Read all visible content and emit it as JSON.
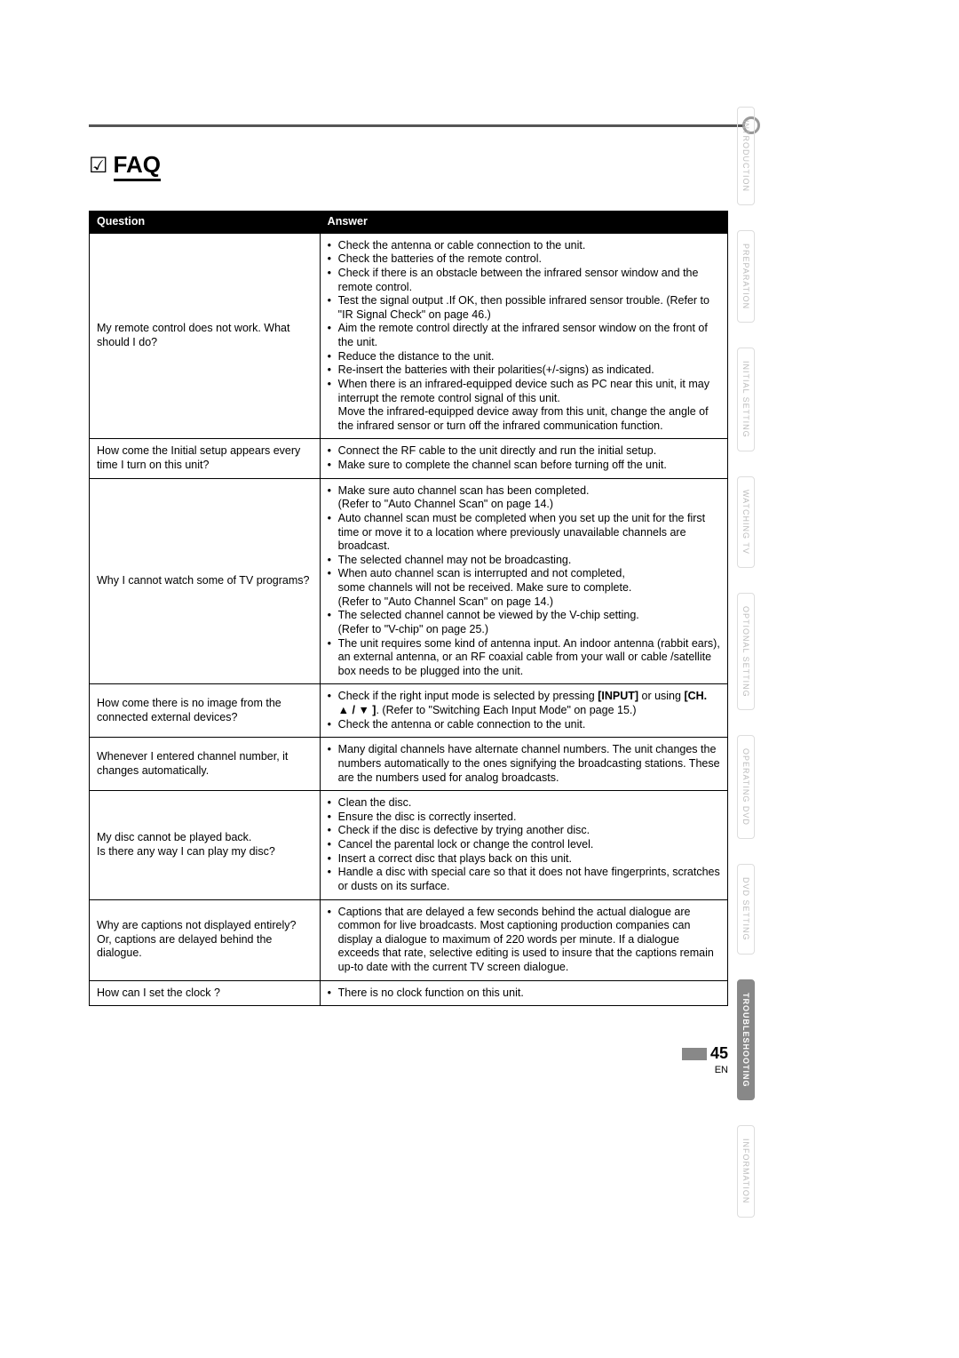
{
  "title": "FAQ",
  "headers": {
    "q": "Question",
    "a": "Answer"
  },
  "rows": [
    {
      "q": "My remote control does not work.  What should I do?",
      "a": [
        "Check the antenna or cable connection to the unit.",
        "Check the batteries of the remote control.",
        "Check if there is an obstacle between the infrared sensor window and the remote control.",
        "Test the signal output .If OK, then possible infrared sensor trouble. (Refer to \"IR Signal Check\" on page 46.)",
        "Aim the remote control directly at the infrared sensor window on the front of the unit.",
        "Reduce the distance to the unit.",
        "Re-insert the batteries with their polarities(+/-signs) as indicated.",
        "When there is an infrared-equipped device such as PC near this unit, it may interrupt the remote control signal of this unit.\nMove the infrared-equipped device away from this unit, change the angle of the infrared sensor or turn off the infrared communication function."
      ]
    },
    {
      "q": "How come the Initial setup appears every time I turn on this unit?",
      "a": [
        "Connect the RF cable to the unit directly and run the initial setup.",
        "Make sure to complete the channel scan before turning off the unit."
      ]
    },
    {
      "q": "Why I cannot watch some of TV programs?",
      "a": [
        "Make sure auto channel scan has been completed.\n(Refer to \"Auto Channel Scan\" on page 14.)",
        "Auto channel scan must be completed when you set up the unit for the first time or move it to a location where previously unavailable channels are broadcast.",
        "The selected channel may not be broadcasting.",
        "When auto channel scan is interrupted and not completed,\nsome channels will not be received. Make sure to complete.\n(Refer to \"Auto Channel Scan\" on page 14.)",
        "The selected channel cannot be viewed by the V-chip setting.\n(Refer to \"V-chip\" on page 25.)",
        "The unit requires some kind of antenna input. An indoor antenna (rabbit ears), an external antenna, or an RF coaxial cable from your wall or cable /satellite box needs to be plugged into the unit."
      ]
    },
    {
      "q": "How come there is no image from the connected external devices?",
      "a_html": "<li>Check if the right input mode is selected by pressing <b>[INPUT]</b> or using <b>[CH. ▲ / ▼ ]</b>. (Refer to \"Switching Each Input Mode\" on page 15.)</li><li>Check the antenna or cable connection to the unit.</li>"
    },
    {
      "q": "Whenever I entered channel number, it changes automatically.",
      "a": [
        "Many digital channels have alternate channel numbers. The unit changes the numbers automatically to the ones signifying the broadcasting stations. These are the numbers used for analog broadcasts."
      ]
    },
    {
      "q": "My disc cannot be played back.\nIs there any way I can play my disc?",
      "a": [
        "Clean the disc.",
        "Ensure the disc is correctly inserted.",
        "Check if the disc is defective by trying another disc.",
        "Cancel the parental lock or change the control level.",
        "Insert a correct disc that plays back on this unit.",
        "Handle a disc with special care so that it does not have  fingerprints, scratches or dusts on its surface."
      ]
    },
    {
      "q": "Why are captions not displayed entirely? Or, captions are delayed behind the dialogue.",
      "a": [
        "Captions that are delayed a few seconds behind the actual dialogue are common for live broadcasts. Most captioning production companies can display a dialogue to maximum of 220 words per minute. If a dialogue exceeds that rate, selective editing is used to insure that the captions remain up-to date with the current TV screen dialogue."
      ]
    },
    {
      "q": "How can I set the clock ?",
      "a": [
        "There is no clock function on this unit."
      ]
    }
  ],
  "sidebar": [
    {
      "label": "INTRODUCTION",
      "active": false
    },
    {
      "label": "PREPARATION",
      "active": false
    },
    {
      "label": "INITIAL SETTING",
      "active": false
    },
    {
      "label": "WATCHING TV",
      "active": false
    },
    {
      "label": "OPTIONAL SETTING",
      "active": false
    },
    {
      "label": "OPERATING DVD",
      "active": false
    },
    {
      "label": "DVD SETTING",
      "active": false
    },
    {
      "label": "TROUBLESHOOTING",
      "active": true
    },
    {
      "label": "INFORMATION",
      "active": false
    }
  ],
  "footer": {
    "page": "45",
    "lang": "EN"
  }
}
